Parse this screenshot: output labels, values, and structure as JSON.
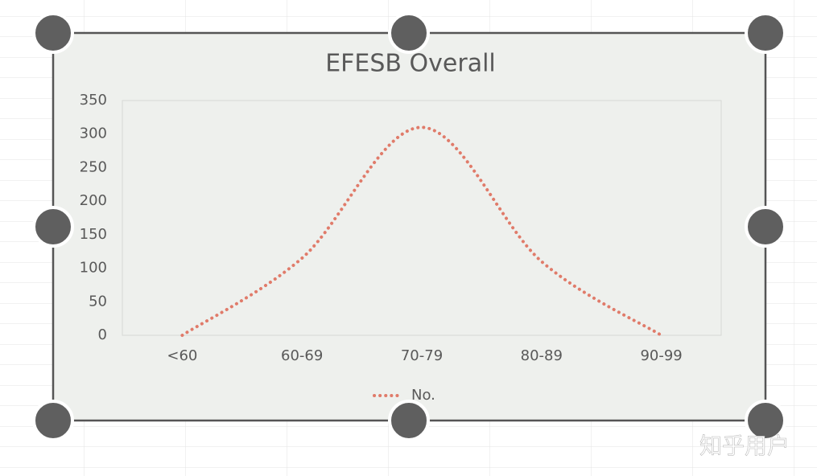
{
  "chart_data": {
    "type": "line",
    "title": "EFESB Overall",
    "categories": [
      "<60",
      "60-69",
      "70-79",
      "80-89",
      "90-99"
    ],
    "series": [
      {
        "name": "No.",
        "color": "#e07b6a",
        "values": [
          0,
          115,
          310,
          110,
          0
        ]
      }
    ],
    "ylim": [
      0,
      350
    ],
    "yticks": [
      0,
      50,
      100,
      150,
      200,
      250,
      300,
      350
    ],
    "smooth": true,
    "legend": "bottom"
  },
  "watermark": "知乎用户"
}
